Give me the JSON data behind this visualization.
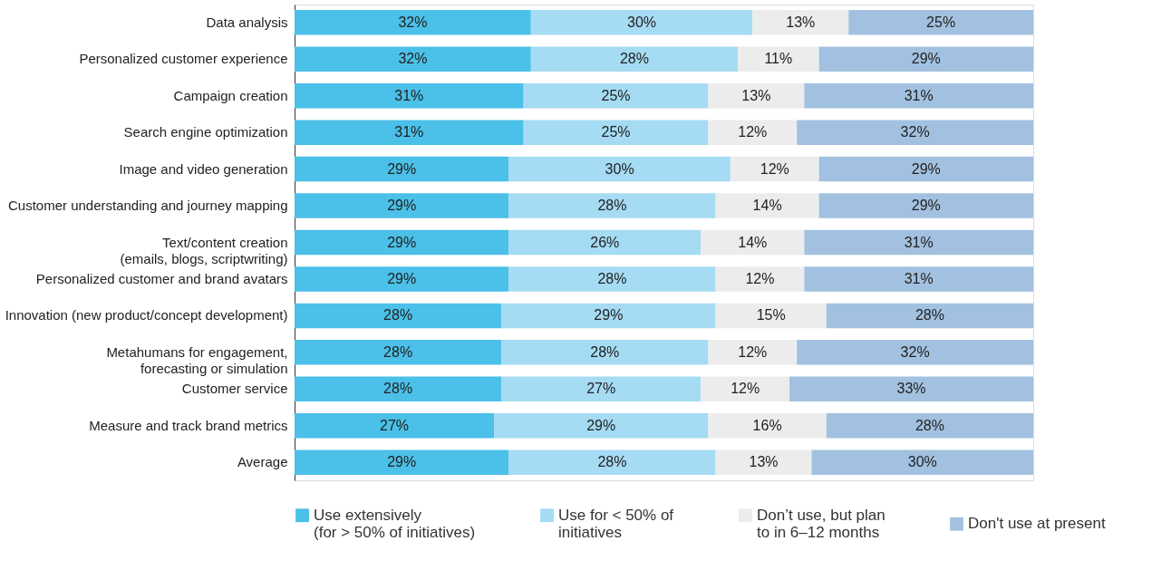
{
  "chart_data": {
    "type": "bar",
    "orientation": "horizontal",
    "stacked": true,
    "legend": "bottom",
    "xlim": [
      0,
      100
    ],
    "categories": [
      "Data analysis",
      "Personalized customer experience",
      "Campaign creation",
      "Search engine optimization",
      "Image and video generation",
      "Customer understanding and journey mapping",
      "Text/content creation\n(emails, blogs, scriptwriting)",
      "Personalized customer and brand avatars",
      "Innovation (new product/concept development)",
      "Metahumans for engagement,\nforecasting or simulation",
      "Customer service",
      "Measure and track brand metrics",
      "Average"
    ],
    "series": [
      {
        "name": "Use extensively\n(for > 50% of initiatives)",
        "color": "#4bc0e8",
        "values": [
          32,
          32,
          31,
          31,
          29,
          29,
          29,
          29,
          28,
          28,
          28,
          27,
          29
        ],
        "value_labels": [
          "32%",
          "32%",
          "31%",
          "31%",
          "29%",
          "29%",
          "29%",
          "29%",
          "28%",
          "28%",
          "28%",
          "27%",
          "29%"
        ]
      },
      {
        "name": "Use for < 50% of\ninitiatives",
        "color": "#a5dbf3",
        "values": [
          30,
          28,
          25,
          25,
          30,
          28,
          26,
          28,
          29,
          28,
          27,
          29,
          28
        ],
        "value_labels": [
          "30%",
          "28%",
          "25%",
          "25%",
          "30%",
          "28%",
          "26%",
          "28%",
          "29%",
          "28%",
          "27%",
          "29%",
          "28%"
        ]
      },
      {
        "name": "Don’t use, but plan\nto in 6–12 months",
        "color": "#ececec",
        "values": [
          13,
          11,
          13,
          12,
          12,
          14,
          14,
          12,
          15,
          12,
          12,
          16,
          13
        ],
        "value_labels": [
          "13%",
          "11%",
          "13%",
          "12%",
          "12%",
          "14%",
          "14%",
          "12%",
          "15%",
          "12%",
          "12%",
          "16%",
          "13%"
        ]
      },
      {
        "name": "Don't use at present",
        "color": "#a2c1e0",
        "values": [
          25,
          29,
          31,
          32,
          29,
          29,
          31,
          31,
          28,
          32,
          33,
          28,
          30
        ],
        "value_labels": [
          "25%",
          "29%",
          "31%",
          "32%",
          "29%",
          "29%",
          "31%",
          "31%",
          "28%",
          "32%",
          "33%",
          "28%",
          "30%"
        ]
      }
    ]
  }
}
